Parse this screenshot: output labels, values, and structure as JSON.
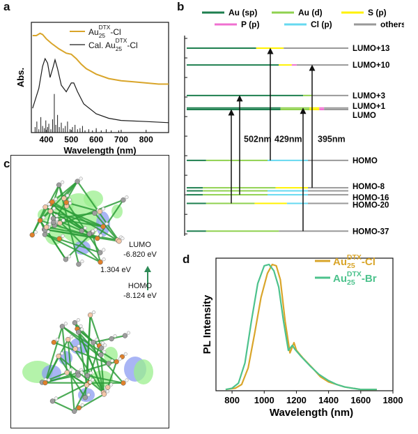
{
  "panel_labels": {
    "a": "a",
    "b": "b",
    "c": "c",
    "d": "d"
  },
  "chart_data": [
    {
      "panel": "a",
      "type": "line",
      "xlabel": "Wavelength (nm)",
      "ylabel": "Abs.",
      "xlim": [
        340,
        890
      ],
      "xticks": [
        400,
        500,
        600,
        700,
        800
      ],
      "ylim": [
        0,
        1.0
      ],
      "legend_position": "top-right",
      "series": [
        {
          "name": "Au25DTX-Cl",
          "name_base": "Au",
          "name_sub": "25",
          "name_sup": "DTX",
          "name_tail": "-Cl",
          "color": "#D9A52A",
          "x": [
            345,
            360,
            375,
            385,
            400,
            420,
            450,
            480,
            500,
            520,
            540,
            560,
            600,
            650,
            700,
            750,
            800,
            850,
            890
          ],
          "y": [
            0.88,
            0.88,
            0.9,
            0.89,
            0.85,
            0.81,
            0.76,
            0.72,
            0.71,
            0.67,
            0.62,
            0.58,
            0.53,
            0.49,
            0.47,
            0.46,
            0.45,
            0.44,
            0.44
          ]
        },
        {
          "name": "Cal. Au25DTX-Cl",
          "name_base": "Cal. Au",
          "name_sub": "25",
          "name_sup": "DTX",
          "name_tail": "-Cl",
          "color": "#1a1a1a",
          "x": [
            345,
            370,
            385,
            395,
            405,
            415,
            428,
            435,
            445,
            460,
            480,
            500,
            510,
            525,
            550,
            600,
            650,
            700,
            800,
            890
          ],
          "y": [
            0.22,
            0.4,
            0.6,
            0.67,
            0.63,
            0.5,
            0.6,
            0.66,
            0.58,
            0.43,
            0.37,
            0.45,
            0.45,
            0.37,
            0.26,
            0.17,
            0.13,
            0.11,
            0.1,
            0.09
          ]
        }
      ],
      "sticks": {
        "color": "#1a1a1a",
        "x": [
          355,
          362,
          370,
          378,
          385,
          392,
          398,
          405,
          410,
          418,
          425,
          432,
          438,
          445,
          452,
          460,
          468,
          476,
          485,
          495,
          505,
          515,
          525,
          535,
          545,
          555,
          570,
          585,
          600,
          620,
          640,
          660,
          690
        ],
        "h": [
          0.05,
          0.1,
          0.03,
          0.14,
          0.06,
          0.04,
          0.11,
          0.05,
          0.08,
          0.03,
          0.12,
          0.35,
          0.07,
          0.16,
          0.05,
          0.09,
          0.04,
          0.06,
          0.1,
          0.03,
          0.05,
          0.07,
          0.03,
          0.04,
          0.06,
          0.02,
          0.03,
          0.02,
          0.04,
          0.02,
          0.03,
          0.02,
          0.02
        ]
      }
    },
    {
      "panel": "b",
      "type": "energy-level-diagram",
      "ylim": [
        -10.05,
        -5.0
      ],
      "yticks": [
        "-5.0",
        "-5.5",
        "-6.0",
        "-6.5",
        "-7.0",
        "-7.5",
        "-8.0",
        "-8.5",
        "-9.0",
        "-9.5",
        "-10.0"
      ],
      "legend": [
        {
          "label": "Au (sp)",
          "color": "#1E7F4F"
        },
        {
          "label": "Au (d)",
          "color": "#8FD14F"
        },
        {
          "label": "S (p)",
          "color": "#FFF200"
        },
        {
          "label": "P (p)",
          "color": "#F070D0"
        },
        {
          "label": "Cl (p)",
          "color": "#66D9F0"
        },
        {
          "label": "others",
          "color": "#999999"
        }
      ],
      "levels": [
        {
          "label": "LUMO+13",
          "energy": -5.25,
          "segments": [
            [
              "Au (sp)",
              0.43
            ],
            [
              "S (p)",
              0.17
            ],
            [
              "others",
              0.4
            ]
          ]
        },
        {
          "label": "LUMO+10",
          "energy": -5.68,
          "segments": [
            [
              "Au (sp)",
              0.57
            ],
            [
              "S (p)",
              0.08
            ],
            [
              "P (p)",
              0.03
            ],
            [
              "others",
              0.32
            ]
          ]
        },
        {
          "label": "LUMO+3",
          "energy": -6.46,
          "segments": [
            [
              "Au (sp)",
              0.72
            ],
            [
              "Au (d)",
              0.06
            ],
            [
              "others",
              0.22
            ]
          ]
        },
        {
          "label": "LUMO+1",
          "energy": -6.78,
          "segments": [
            [
              "Au (sp)",
              0.58
            ],
            [
              "Au (d)",
              0.18
            ],
            [
              "S (p)",
              0.06
            ],
            [
              "P (p)",
              0.03
            ],
            [
              "others",
              0.15
            ]
          ]
        },
        {
          "label": "LUMO",
          "energy": -6.82,
          "segments": [
            [
              "Au (sp)",
              0.58
            ],
            [
              "Au (d)",
              0.18
            ],
            [
              "S (p)",
              0.06
            ],
            [
              "P (p)",
              0.03
            ],
            [
              "others",
              0.15
            ]
          ]
        },
        {
          "label": "HOMO",
          "energy": -8.12,
          "segments": [
            [
              "Au (sp)",
              0.12
            ],
            [
              "Au (d)",
              0.38
            ],
            [
              "Cl (p)",
              0.25
            ],
            [
              "others",
              0.25
            ]
          ]
        },
        {
          "label": "HOMO-8",
          "energy": -8.82,
          "segments": [
            [
              "Au (sp)",
              0.1
            ],
            [
              "Au (d)",
              0.45
            ],
            [
              "S (p)",
              0.2
            ],
            [
              "others",
              0.25
            ]
          ]
        },
        {
          "label": "",
          "energy": -8.9,
          "segments": [
            [
              "Au (sp)",
              0.1
            ],
            [
              "Au (d)",
              0.4
            ],
            [
              "Cl (p)",
              0.25
            ],
            [
              "others",
              0.25
            ]
          ]
        },
        {
          "label": "HOMO-16",
          "energy": -9.0,
          "segments": [
            [
              "Au (sp)",
              0.1
            ],
            [
              "Au (d)",
              0.4
            ],
            [
              "Cl (p)",
              0.25
            ],
            [
              "others",
              0.25
            ]
          ]
        },
        {
          "label": "HOMO-20",
          "energy": -9.22,
          "segments": [
            [
              "Au (sp)",
              0.12
            ],
            [
              "Au (d)",
              0.3
            ],
            [
              "S (p)",
              0.2
            ],
            [
              "Cl (p)",
              0.13
            ],
            [
              "others",
              0.25
            ]
          ]
        },
        {
          "label": "HOMO-37",
          "energy": -9.93,
          "segments": [
            [
              "Au (sp)",
              0.12
            ],
            [
              "Au (d)",
              0.45
            ],
            [
              "others",
              0.43
            ]
          ]
        }
      ],
      "transitions": [
        {
          "from": -9.22,
          "to": -6.82,
          "label": ""
        },
        {
          "from": -9.0,
          "to": -6.46,
          "label": "502nm"
        },
        {
          "from": -8.12,
          "to": -5.25,
          "label": "429nm"
        },
        {
          "from": -9.93,
          "to": -6.78,
          "label": ""
        },
        {
          "from": -8.82,
          "to": -5.68,
          "label": "395nm"
        }
      ]
    },
    {
      "panel": "d",
      "type": "line",
      "xlabel": "Wavelength (nm)",
      "ylabel": "PL Intensity",
      "xlim": [
        700,
        1800
      ],
      "xticks": [
        800,
        1000,
        1200,
        1400,
        1600,
        1800
      ],
      "ylim": [
        0,
        1.05
      ],
      "legend_position": "top-right",
      "series": [
        {
          "name": "Au25DTX-Cl",
          "name_base": "Au",
          "name_sub": "25",
          "name_sup": "DTX",
          "name_tail": "-Cl",
          "color": "#D9A52A",
          "x": [
            760,
            820,
            860,
            900,
            940,
            980,
            1020,
            1050,
            1075,
            1100,
            1130,
            1160,
            1185,
            1200,
            1240,
            1300,
            1350,
            1400,
            1450,
            1500,
            1550,
            1600,
            1650,
            1700
          ],
          "y": [
            0.01,
            0.02,
            0.05,
            0.18,
            0.45,
            0.74,
            0.93,
            1.0,
            0.99,
            0.88,
            0.55,
            0.3,
            0.38,
            0.32,
            0.26,
            0.18,
            0.11,
            0.07,
            0.05,
            0.03,
            0.02,
            0.01,
            0.01,
            0.01
          ]
        },
        {
          "name": "Au25DTX-Br",
          "name_base": "Au",
          "name_sub": "25",
          "name_sup": "DTX",
          "name_tail": "-Br",
          "color": "#4CC28C",
          "x": [
            760,
            800,
            840,
            880,
            920,
            960,
            1000,
            1030,
            1060,
            1090,
            1120,
            1150,
            1175,
            1190,
            1230,
            1290,
            1340,
            1400,
            1450,
            1500,
            1550,
            1600,
            1650,
            1700
          ],
          "y": [
            0.01,
            0.02,
            0.06,
            0.22,
            0.55,
            0.85,
            0.99,
            1.0,
            0.95,
            0.82,
            0.55,
            0.32,
            0.36,
            0.33,
            0.27,
            0.19,
            0.13,
            0.08,
            0.05,
            0.03,
            0.02,
            0.01,
            0.01,
            0.01
          ]
        }
      ]
    }
  ],
  "panel_c": {
    "lumo_label": "LUMO",
    "lumo_energy": "-6.820 eV",
    "gap": "1.304 eV",
    "homo_label": "HOMO",
    "homo_energy": "-8.124 eV"
  }
}
